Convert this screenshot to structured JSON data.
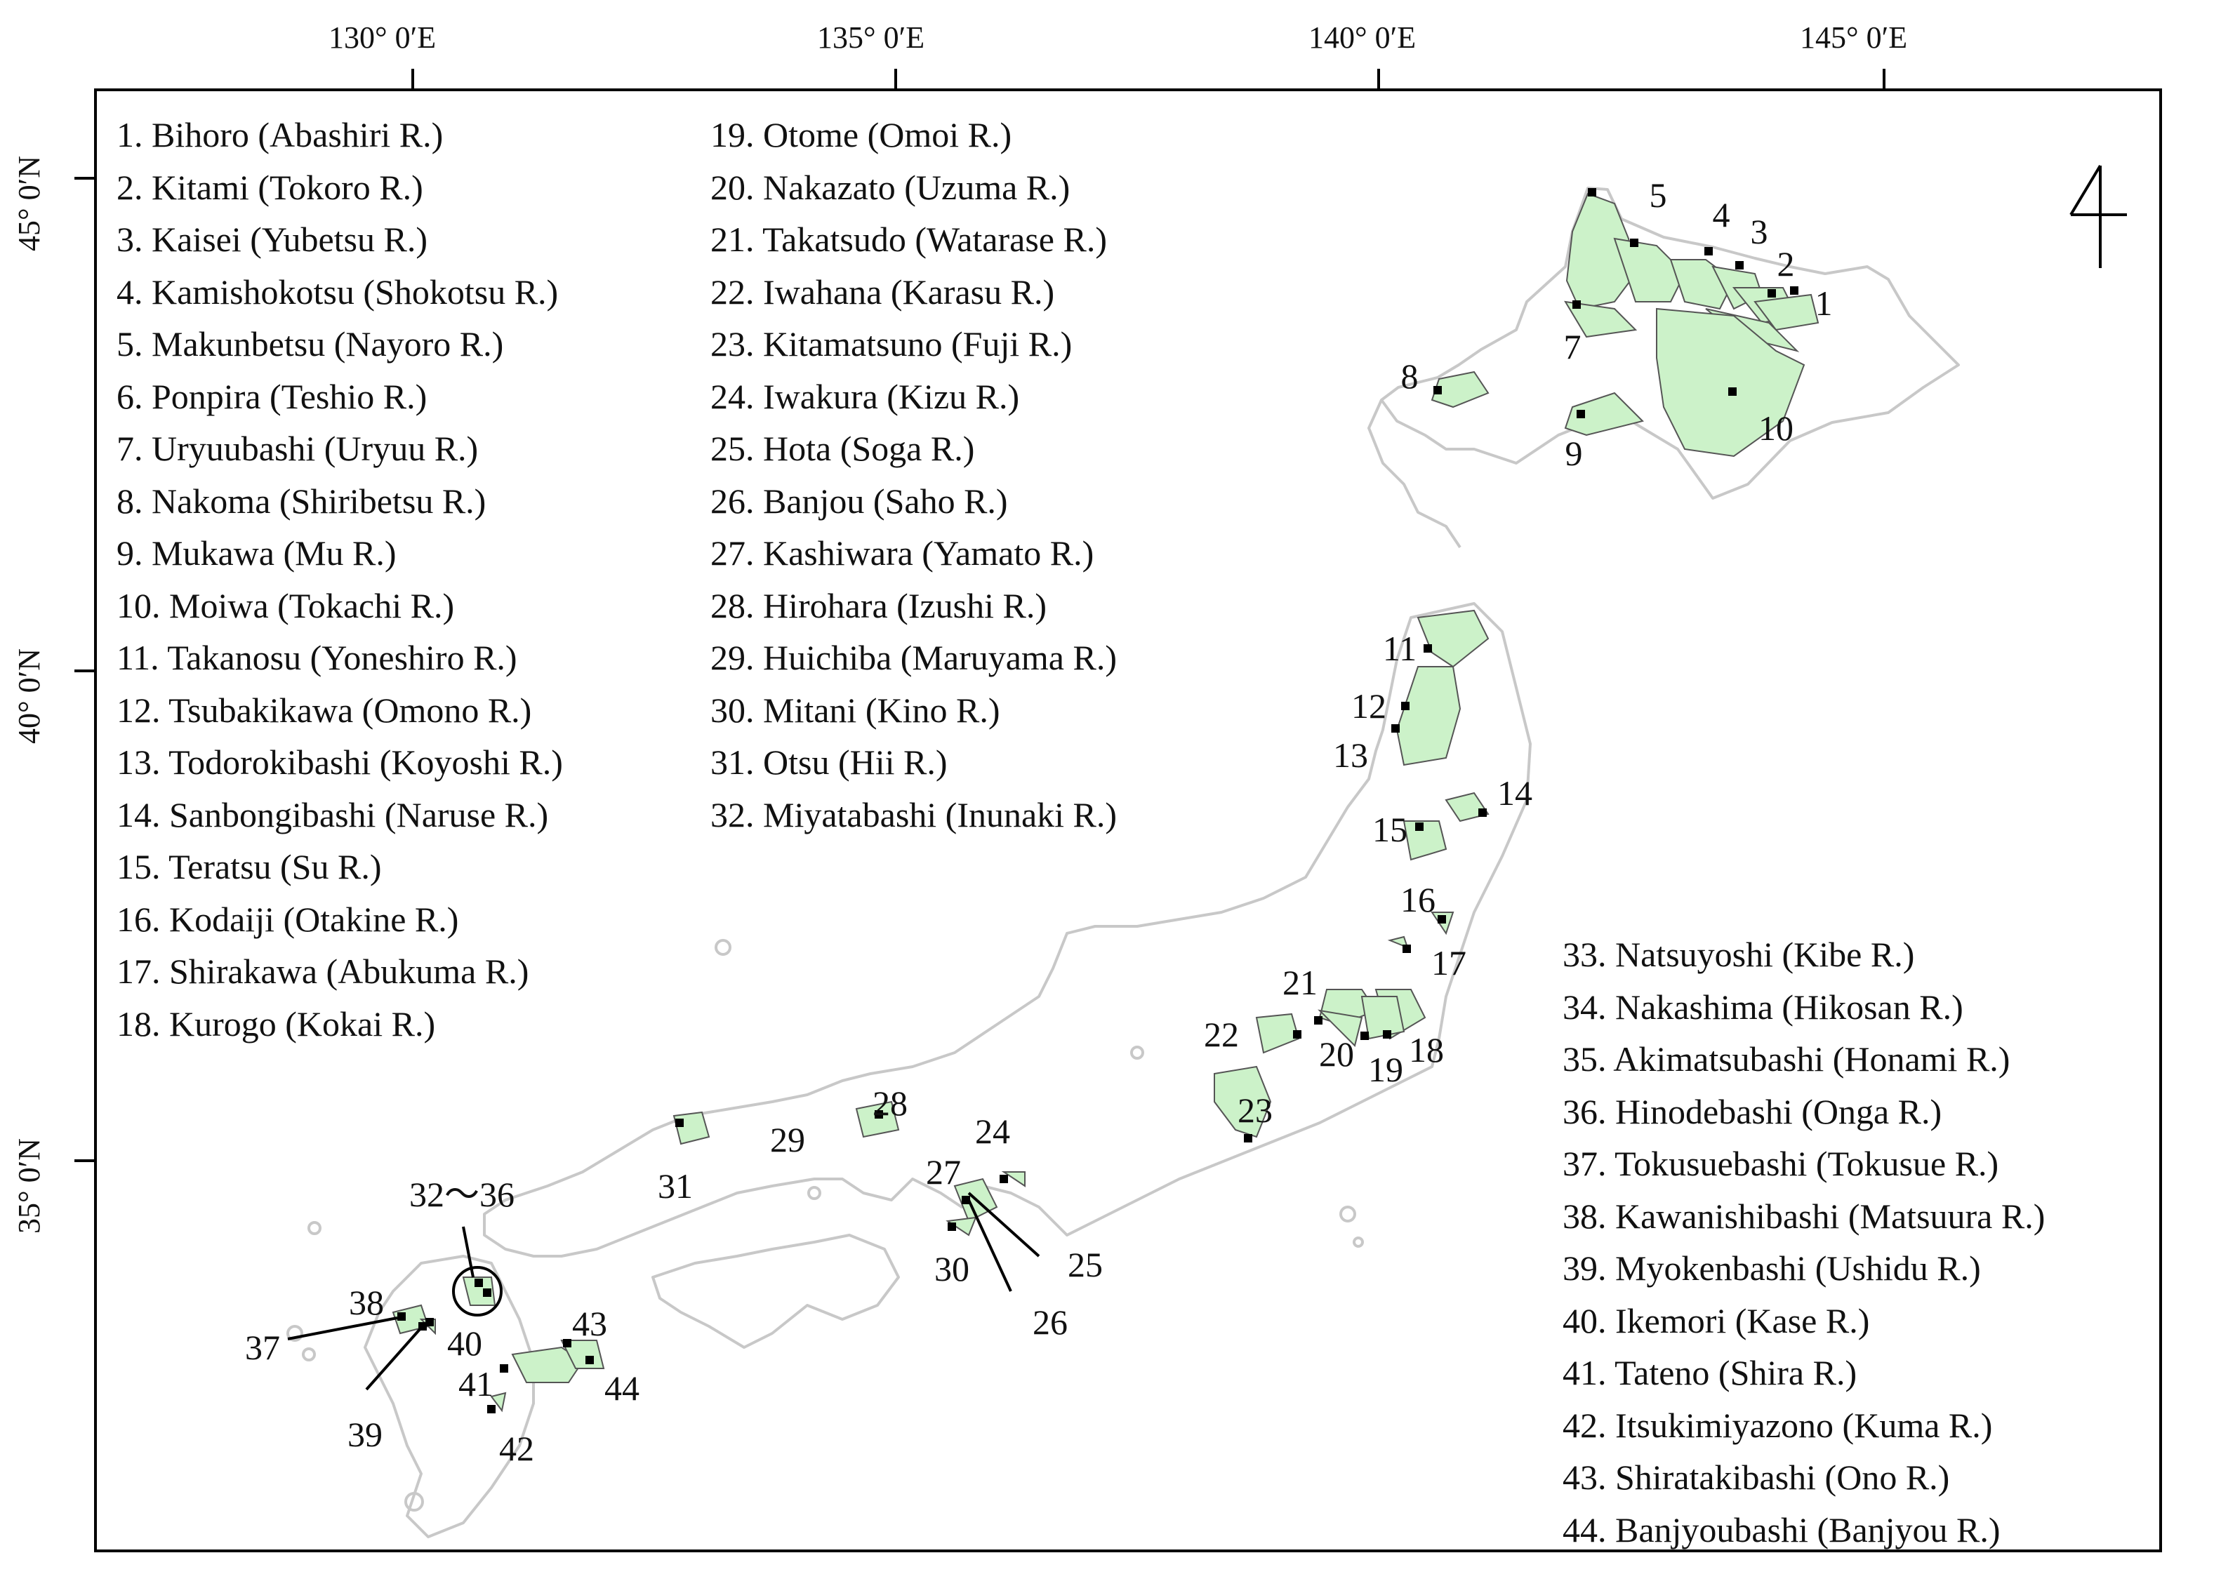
{
  "graticule": {
    "longitudes": [
      "130°  0′E",
      "135°  0′E",
      "140°  0′E",
      "145°  0′E"
    ],
    "latitudes": [
      "45°  0′N",
      "40°  0′N",
      "35°  0′N"
    ]
  },
  "legend": {
    "col1": [
      "1. Bihoro (Abashiri R.)",
      "2. Kitami (Tokoro R.)",
      "3. Kaisei (Yubetsu R.)",
      "4. Kamishokotsu (Shokotsu R.)",
      "5. Makunbetsu (Nayoro R.)",
      "6. Ponpira (Teshio R.)",
      "7. Uryuubashi (Uryuu R.)",
      "8. Nakoma (Shiribetsu R.)",
      "9. Mukawa (Mu R.)",
      "10. Moiwa (Tokachi R.)",
      "11. Takanosu (Yoneshiro R.)",
      "12. Tsubakikawa (Omono R.)",
      "13. Todorokibashi (Koyoshi R.)",
      "14. Sanbongibashi (Naruse R.)",
      "15. Teratsu (Su R.)",
      "16. Kodaiji (Otakine R.)",
      "17. Shirakawa (Abukuma R.)",
      "18. Kurogo (Kokai R.)"
    ],
    "col2": [
      "19. Otome (Omoi R.)",
      "20. Nakazato (Uzuma R.)",
      "21. Takatsudo (Watarase R.)",
      "22. Iwahana (Karasu R.)",
      "23. Kitamatsuno (Fuji R.)",
      "24. Iwakura (Kizu R.)",
      "25. Hota (Soga R.)",
      "26. Banjou (Saho R.)",
      "27. Kashiwara (Yamato R.)",
      "28. Hirohara (Izushi R.)",
      "29. Huichiba (Maruyama R.)",
      "30. Mitani (Kino R.)",
      "31. Otsu (Hii R.)",
      "32. Miyatabashi (Inunaki R.)"
    ],
    "col3": [
      "33. Natsuyoshi (Kibe R.)",
      "34. Nakashima (Hikosan R.)",
      "35. Akimatsubashi (Honami R.)",
      "36. Hinodebashi (Onga R.)",
      "37. Tokusuebashi (Tokusue R.)",
      "38. Kawanishibashi (Matsuura R.)",
      "39. Myokenbashi (Ushidu R.)",
      "40. Ikemori (Kase R.)",
      "41. Tateno (Shira R.)",
      "42. Itsukimiyazono (Kuma R.)",
      "43. Shiratakibashi (Ono R.)",
      "44. Banjyoubashi (Banjyou R.)"
    ]
  },
  "map_labels": [
    "1",
    "2",
    "3",
    "4",
    "5",
    "7",
    "8",
    "9",
    "10",
    "11",
    "12",
    "13",
    "14",
    "15",
    "16",
    "17",
    "18",
    "19",
    "20",
    "21",
    "22",
    "23",
    "24",
    "25",
    "26",
    "27",
    "28",
    "29",
    "30",
    "31",
    "32～36",
    "37",
    "38",
    "39",
    "40",
    "41",
    "42",
    "43",
    "44"
  ],
  "colors": {
    "basin_fill": "#ccf2c9",
    "coastline": "#c8c8c8",
    "frame": "#000000"
  },
  "north_arrow_icon": "north-arrow-icon"
}
